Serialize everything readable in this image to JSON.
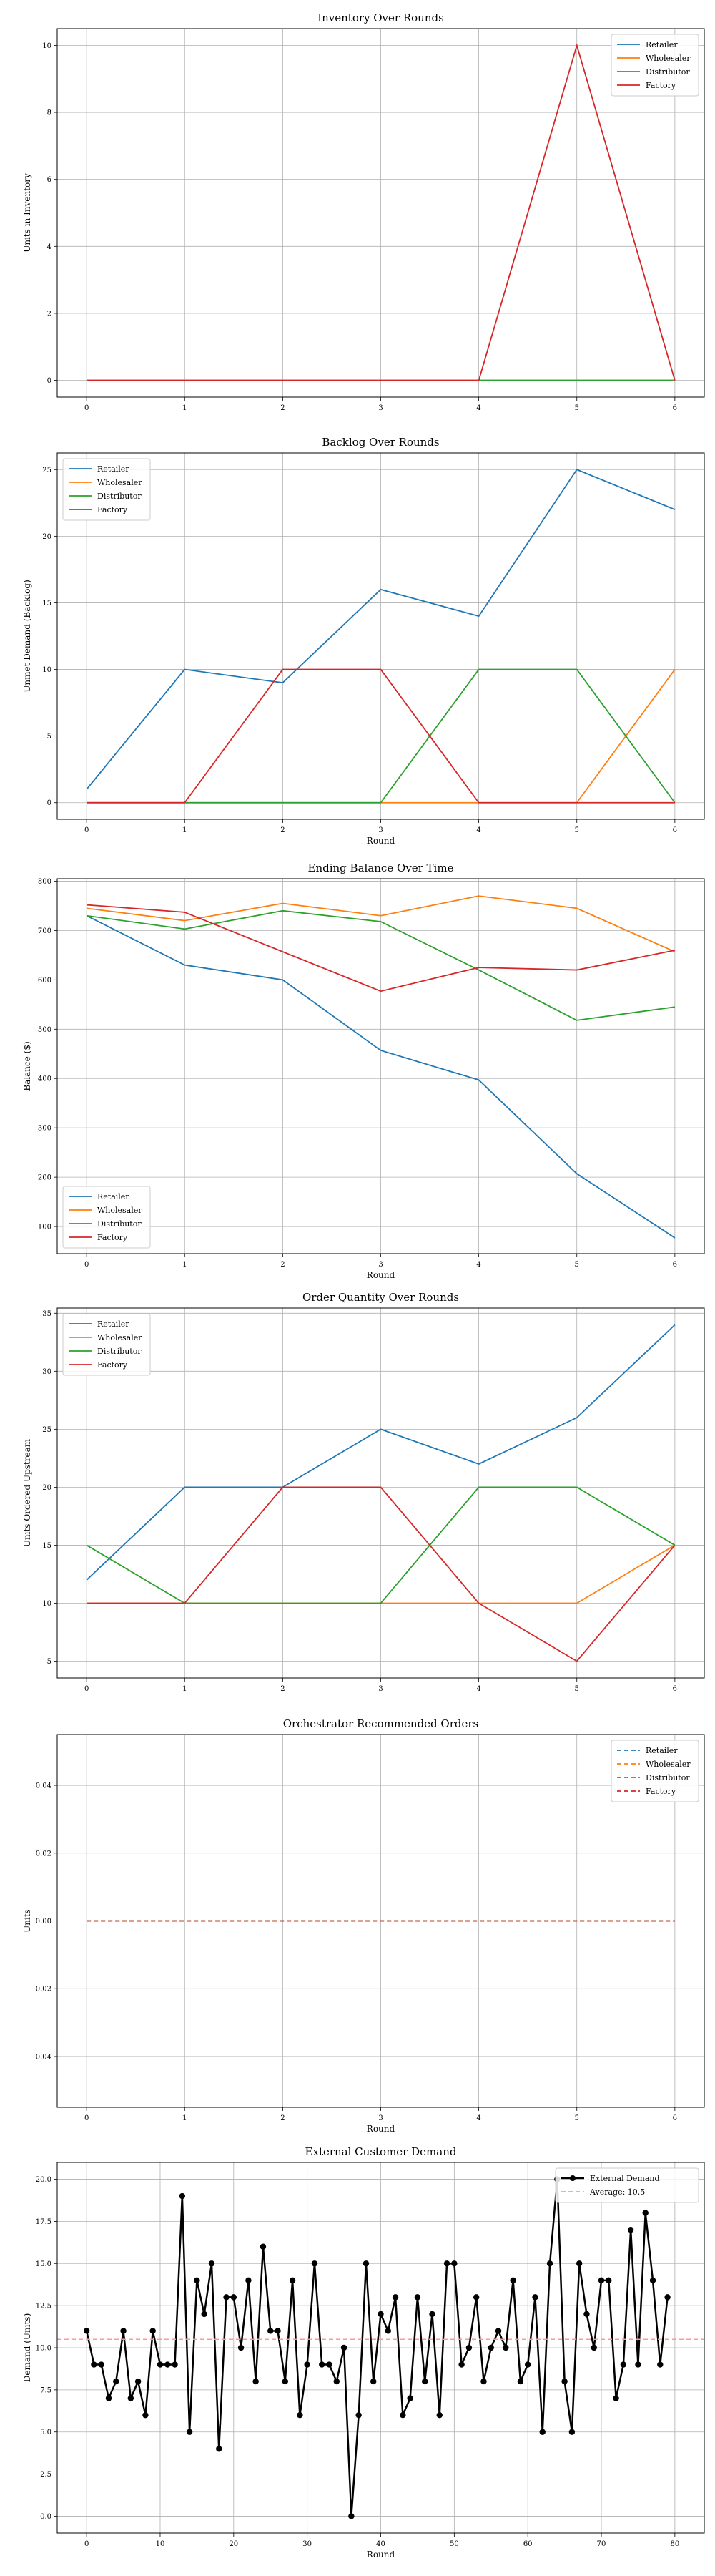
{
  "colors": {
    "Retailer": "#1f77b4",
    "Wholesaler": "#ff7f0e",
    "Distributor": "#2ca02c",
    "Factory": "#d62728",
    "External Demand": "#000000",
    "Average": "#ff9896"
  },
  "chart_data": [
    {
      "type": "line",
      "title": "Inventory Over Rounds",
      "xlabel": "",
      "ylabel": "Units in Inventory",
      "x": [
        0,
        1,
        2,
        3,
        4,
        5,
        6
      ],
      "xlim": [
        -0.3,
        6.3
      ],
      "ylim": [
        -0.5,
        10.5
      ],
      "xticks": [
        0,
        1,
        2,
        3,
        4,
        5,
        6
      ],
      "yticks": [
        0,
        2,
        4,
        6,
        8,
        10
      ],
      "grid": true,
      "legend": "top-right",
      "series": [
        {
          "name": "Retailer",
          "values": [
            0,
            0,
            0,
            0,
            0,
            0,
            0
          ]
        },
        {
          "name": "Wholesaler",
          "values": [
            0,
            0,
            0,
            0,
            0,
            0,
            0
          ]
        },
        {
          "name": "Distributor",
          "values": [
            0,
            0,
            0,
            0,
            0,
            0,
            0
          ]
        },
        {
          "name": "Factory",
          "values": [
            0,
            0,
            0,
            0,
            0,
            10,
            0
          ]
        }
      ]
    },
    {
      "type": "line",
      "title": "Backlog Over Rounds",
      "xlabel": "Round",
      "ylabel": "Unmet Demand (Backlog)",
      "x": [
        0,
        1,
        2,
        3,
        4,
        5,
        6
      ],
      "xlim": [
        -0.3,
        6.3
      ],
      "ylim": [
        -1.25,
        26.25
      ],
      "xticks": [
        0,
        1,
        2,
        3,
        4,
        5,
        6
      ],
      "yticks": [
        0,
        5,
        10,
        15,
        20,
        25
      ],
      "grid": true,
      "legend": "top-left",
      "series": [
        {
          "name": "Retailer",
          "values": [
            1,
            10,
            9,
            16,
            14,
            25,
            22
          ]
        },
        {
          "name": "Wholesaler",
          "values": [
            0,
            0,
            0,
            0,
            0,
            0,
            10
          ]
        },
        {
          "name": "Distributor",
          "values": [
            0,
            0,
            0,
            0,
            10,
            10,
            0
          ]
        },
        {
          "name": "Factory",
          "values": [
            0,
            0,
            10,
            10,
            0,
            0,
            0
          ]
        }
      ]
    },
    {
      "type": "line",
      "title": "Ending Balance Over Time",
      "xlabel": "Round",
      "ylabel": "Balance ($)",
      "x": [
        0,
        1,
        2,
        3,
        4,
        5,
        6
      ],
      "xlim": [
        -0.3,
        6.3
      ],
      "ylim": [
        45,
        805
      ],
      "xticks": [
        0,
        1,
        2,
        3,
        4,
        5,
        6
      ],
      "yticks": [
        100,
        200,
        300,
        400,
        500,
        600,
        700,
        800
      ],
      "grid": true,
      "legend": "bottom-left",
      "series": [
        {
          "name": "Retailer",
          "values": [
            730,
            630,
            600,
            457,
            397,
            207,
            77
          ]
        },
        {
          "name": "Wholesaler",
          "values": [
            745,
            720,
            755,
            730,
            770,
            745,
            657
          ]
        },
        {
          "name": "Distributor",
          "values": [
            730,
            703,
            740,
            718,
            620,
            518,
            545
          ]
        },
        {
          "name": "Factory",
          "values": [
            752,
            737,
            657,
            577,
            625,
            620,
            660
          ]
        }
      ]
    },
    {
      "type": "line",
      "title": "Order Quantity Over Rounds",
      "xlabel": "",
      "ylabel": "Units Ordered Upstream",
      "x": [
        0,
        1,
        2,
        3,
        4,
        5,
        6
      ],
      "xlim": [
        -0.3,
        6.3
      ],
      "ylim": [
        3.55,
        35.45
      ],
      "xticks": [
        0,
        1,
        2,
        3,
        4,
        5,
        6
      ],
      "yticks": [
        5,
        10,
        15,
        20,
        25,
        30,
        35
      ],
      "grid": true,
      "legend": "top-left",
      "series": [
        {
          "name": "Retailer",
          "values": [
            12,
            20,
            20,
            25,
            22,
            26,
            34
          ]
        },
        {
          "name": "Wholesaler",
          "values": [
            10,
            10,
            10,
            10,
            10,
            10,
            15
          ]
        },
        {
          "name": "Distributor",
          "values": [
            15,
            10,
            10,
            10,
            20,
            20,
            15
          ]
        },
        {
          "name": "Factory",
          "values": [
            10,
            10,
            20,
            20,
            10,
            5,
            15
          ]
        }
      ]
    },
    {
      "type": "line",
      "title": "Orchestrator Recommended Orders",
      "xlabel": "Round",
      "ylabel": "Units",
      "x": [
        0,
        1,
        2,
        3,
        4,
        5,
        6
      ],
      "xlim": [
        -0.3,
        6.3
      ],
      "ylim": [
        -0.055,
        0.055
      ],
      "xticks": [
        0,
        1,
        2,
        3,
        4,
        5,
        6
      ],
      "yticks": [
        -0.04,
        -0.02,
        0.0,
        0.02,
        0.04
      ],
      "ytick_labels": [
        "−0.04",
        "−0.02",
        "0.00",
        "0.02",
        "0.04"
      ],
      "grid": true,
      "dashed": true,
      "legend": "top-right",
      "series": [
        {
          "name": "Retailer",
          "values": [
            0,
            0,
            0,
            0,
            0,
            0,
            0
          ]
        },
        {
          "name": "Wholesaler",
          "values": [
            0,
            0,
            0,
            0,
            0,
            0,
            0
          ]
        },
        {
          "name": "Distributor",
          "values": [
            0,
            0,
            0,
            0,
            0,
            0,
            0
          ]
        },
        {
          "name": "Factory",
          "values": [
            0,
            0,
            0,
            0,
            0,
            0,
            0
          ]
        }
      ]
    },
    {
      "type": "line",
      "title": "External Customer Demand",
      "xlabel": "Round",
      "ylabel": "Demand (Units)",
      "xlim": [
        -4,
        84
      ],
      "ylim": [
        -1,
        21
      ],
      "xticks": [
        0,
        10,
        20,
        30,
        40,
        50,
        60,
        70,
        80
      ],
      "yticks": [
        0.0,
        2.5,
        5.0,
        7.5,
        10.0,
        12.5,
        15.0,
        17.5,
        20.0
      ],
      "ytick_labels": [
        "0.0",
        "2.5",
        "5.0",
        "7.5",
        "10.0",
        "12.5",
        "15.0",
        "17.5",
        "20.0"
      ],
      "grid": true,
      "legend": "top-right",
      "markers": true,
      "average": {
        "label": "Average: 10.5",
        "value": 10.5
      },
      "series": [
        {
          "name": "External Demand",
          "values": [
            11,
            9,
            9,
            7,
            8,
            11,
            7,
            8,
            6,
            11,
            9,
            9,
            9,
            19,
            5,
            14,
            12,
            15,
            4,
            13,
            13,
            10,
            14,
            8,
            16,
            11,
            11,
            8,
            14,
            6,
            9,
            15,
            9,
            9,
            8,
            10,
            0,
            6,
            15,
            8,
            12,
            11,
            13,
            6,
            7,
            13,
            8,
            12,
            6,
            15,
            15,
            9,
            10,
            13,
            8,
            10,
            11,
            10,
            14,
            8,
            9,
            13,
            5,
            15,
            20,
            8,
            5,
            15,
            12,
            10,
            14,
            14,
            7,
            9,
            17,
            9,
            18,
            14,
            9,
            13
          ]
        }
      ]
    }
  ]
}
